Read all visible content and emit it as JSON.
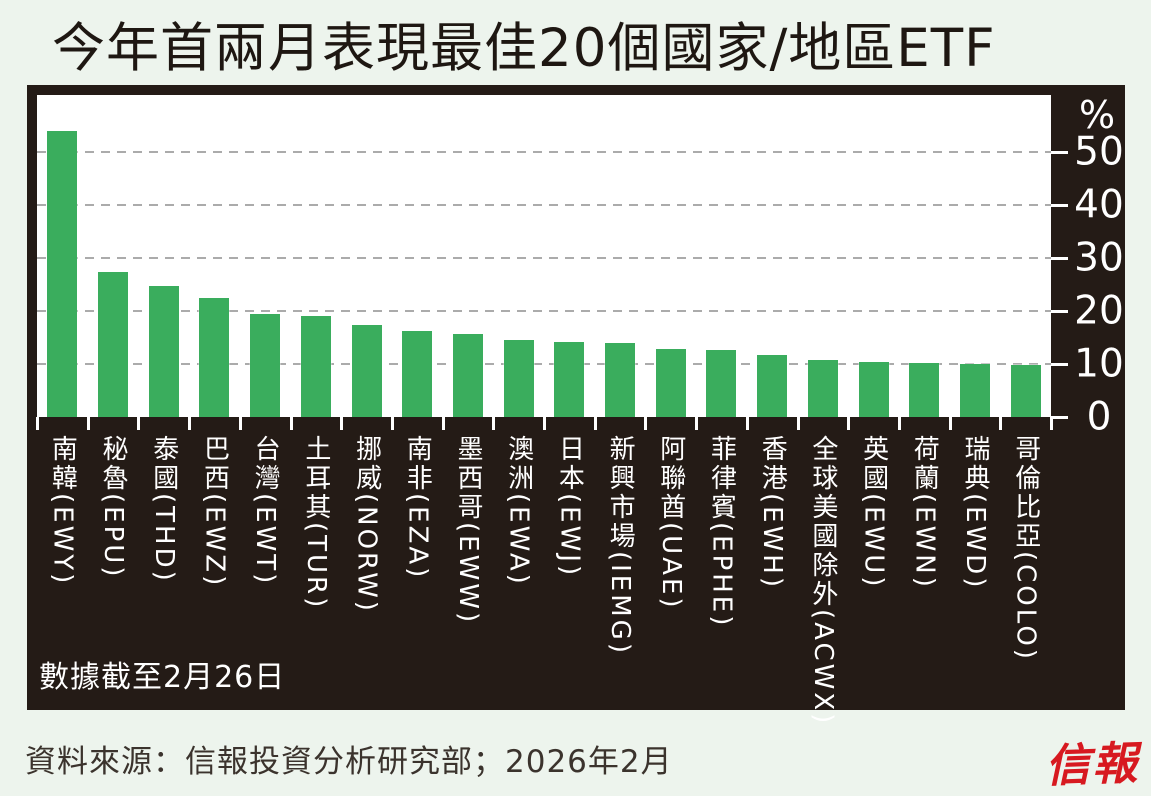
{
  "title": "今年首兩月表現最佳20個國家/地區ETF",
  "note": "數據截至2月26日",
  "source": "資料來源：信報投資分析研究部；2026年2月",
  "logo": "信報",
  "colors": {
    "background": "#edf4ed",
    "frame": "#241b16",
    "plot": "#ffffff",
    "bar": "#3aad5d",
    "grid": "#ababab",
    "axis_text": "#ffffff",
    "title_text": "#1e1712",
    "logo_red": "#d71920"
  },
  "chart_data": {
    "type": "bar",
    "title": "今年首兩月表現最佳20個國家/地區ETF",
    "xlabel": "",
    "ylabel": "%",
    "unit": "%",
    "ylim": [
      0,
      60
    ],
    "yticks": [
      0,
      10,
      20,
      30,
      40,
      50
    ],
    "grid": "dashed-horizontal",
    "legend": "none",
    "bar_color": "#3aad5d",
    "categories": [
      {
        "name": "南韓",
        "ticker": "EWY"
      },
      {
        "name": "秘魯",
        "ticker": "EPU"
      },
      {
        "name": "泰國",
        "ticker": "THD"
      },
      {
        "name": "巴西",
        "ticker": "EWZ"
      },
      {
        "name": "台灣",
        "ticker": "EWT"
      },
      {
        "name": "土耳其",
        "ticker": "TUR"
      },
      {
        "name": "挪威",
        "ticker": "NORW"
      },
      {
        "name": "南非",
        "ticker": "EZA"
      },
      {
        "name": "墨西哥",
        "ticker": "EWW"
      },
      {
        "name": "澳洲",
        "ticker": "EWA"
      },
      {
        "name": "日本",
        "ticker": "EWJ"
      },
      {
        "name": "新興市場",
        "ticker": "IEMG"
      },
      {
        "name": "阿聯酋",
        "ticker": "UAE"
      },
      {
        "name": "菲律賓",
        "ticker": "EPHE"
      },
      {
        "name": "香港",
        "ticker": "EWH"
      },
      {
        "name": "全球美國除外",
        "ticker": "ACWX"
      },
      {
        "name": "英國",
        "ticker": "EWU"
      },
      {
        "name": "荷蘭",
        "ticker": "EWN"
      },
      {
        "name": "瑞典",
        "ticker": "EWD"
      },
      {
        "name": "哥倫比亞",
        "ticker": "COLO"
      }
    ],
    "values": [
      54.0,
      27.4,
      24.7,
      22.4,
      19.4,
      19.0,
      17.4,
      16.2,
      15.7,
      14.5,
      14.2,
      14.0,
      12.8,
      12.6,
      11.7,
      10.8,
      10.4,
      10.2,
      10.0,
      9.8
    ]
  }
}
